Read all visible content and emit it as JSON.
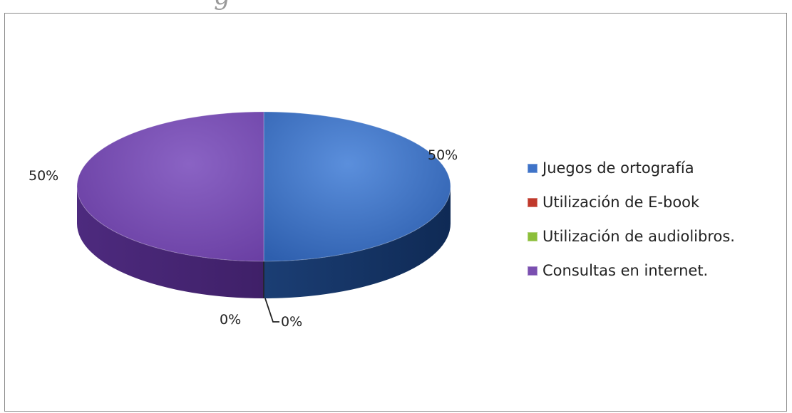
{
  "title_fragment": "g",
  "chart_data": {
    "type": "pie",
    "title": "",
    "categories": [
      "Juegos de ortografía",
      "Utilización de E-book",
      "Utilización de audiolibros.",
      "Consultas en internet."
    ],
    "values": [
      50,
      0,
      0,
      50
    ],
    "data_labels": [
      "50%",
      "0%",
      "0%",
      "50%"
    ],
    "colors": [
      "#3f73c8",
      "#c0392b",
      "#8cbf3a",
      "#7a4fb0"
    ],
    "legend_position": "right",
    "style": "3d"
  }
}
